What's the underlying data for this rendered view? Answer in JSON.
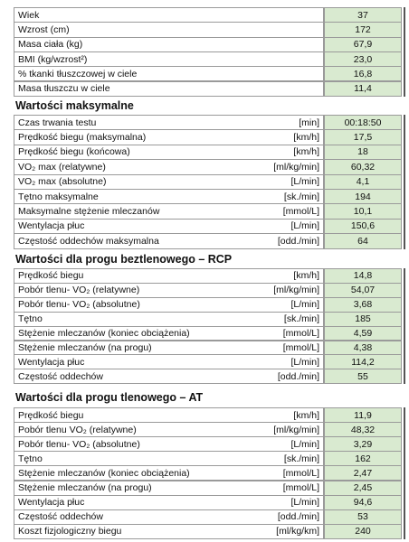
{
  "summary": {
    "rows": [
      {
        "label": "Wiek",
        "value": "37"
      },
      {
        "label": "Wzrost (cm)",
        "value": "172"
      },
      {
        "label": "Masa ciała (kg)",
        "value": "67,9"
      },
      {
        "label": "BMI (kg/wzrost²)",
        "value": "23,0"
      },
      {
        "label": "% tkanki tłuszczowej w ciele",
        "value": "16,8"
      },
      {
        "label": "Masa tłuszczu w ciele",
        "value": "11,4"
      }
    ]
  },
  "sections": [
    {
      "title": "Wartości maksymalne",
      "rows": [
        {
          "label": "Czas trwania testu",
          "unit": "[min]",
          "value": "00:18:50"
        },
        {
          "label": "Prędkość biegu (maksymalna)",
          "unit": "[km/h]",
          "value": "17,5"
        },
        {
          "label": "Prędkość biegu (końcowa)",
          "unit": "[km/h]",
          "value": "18"
        },
        {
          "label": "VO₂ max (relatywne)",
          "unit": "[ml/kg/min]",
          "value": "60,32"
        },
        {
          "label": "VO₂ max (absolutne)",
          "unit": "[L/min]",
          "value": "4,1"
        },
        {
          "label": "Tętno maksymalne",
          "unit": "[sk./min]",
          "value": "194"
        },
        {
          "label": "Maksymalne stężenie mleczanów",
          "unit": "[mmol/L]",
          "value": "10,1"
        },
        {
          "label": "Wentylacja płuc",
          "unit": "[L/min]",
          "value": "150,6"
        },
        {
          "label": "Częstość oddechów maksymalna",
          "unit": "[odd./min]",
          "value": "64"
        }
      ]
    },
    {
      "title": "Wartości dla progu beztlenowego – RCP",
      "rows": [
        {
          "label": "Prędkość biegu",
          "unit": "[km/h]",
          "value": "14,8"
        },
        {
          "label": "Pobór tlenu- VO₂ (relatywne)",
          "unit": "[ml/kg/min]",
          "value": "54,07"
        },
        {
          "label": "Pobór tlenu- VO₂ (absolutne)",
          "unit": "[L/min]",
          "value": "3,68"
        },
        {
          "label": "Tętno",
          "unit": "[sk./min]",
          "value": "185"
        },
        {
          "label": "Stężenie mleczanów (koniec obciążenia)",
          "unit": "[mmol/L]",
          "value": "4,59"
        },
        {
          "label": "Stężenie mleczanów (na progu)",
          "unit": "[mmol/L]",
          "value": "4,38"
        },
        {
          "label": "Wentylacja płuc",
          "unit": "[L/min]",
          "value": "114,2"
        },
        {
          "label": "Częstość oddechów",
          "unit": "[odd./min]",
          "value": "55"
        }
      ]
    },
    {
      "title": "Wartości dla progu tlenowego – AT",
      "rows": [
        {
          "label": "Prędkość biegu",
          "unit": "[km/h]",
          "value": "11,9"
        },
        {
          "label": "Pobór tlenu VO₂ (relatywne)",
          "unit": "[ml/kg/min]",
          "value": "48,32"
        },
        {
          "label": "Pobór tlenu- VO₂ (absolutne)",
          "unit": "[L/min]",
          "value": "3,29"
        },
        {
          "label": "Tętno",
          "unit": "[sk./min]",
          "value": "162"
        },
        {
          "label": "Stężenie mleczanów (koniec obciążenia)",
          "unit": "[mmol/L]",
          "value": "2,47"
        },
        {
          "label": "Stężenie mleczanów (na progu)",
          "unit": "[mmol/L]",
          "value": "2,45"
        },
        {
          "label": "Wentylacja płuc",
          "unit": "[L/min]",
          "value": "94,6"
        },
        {
          "label": "Częstość oddechów",
          "unit": "[odd./min]",
          "value": "53"
        },
        {
          "label": "Koszt fizjologiczny biegu",
          "unit": "[ml/kg/km]",
          "value": "240"
        }
      ]
    }
  ]
}
